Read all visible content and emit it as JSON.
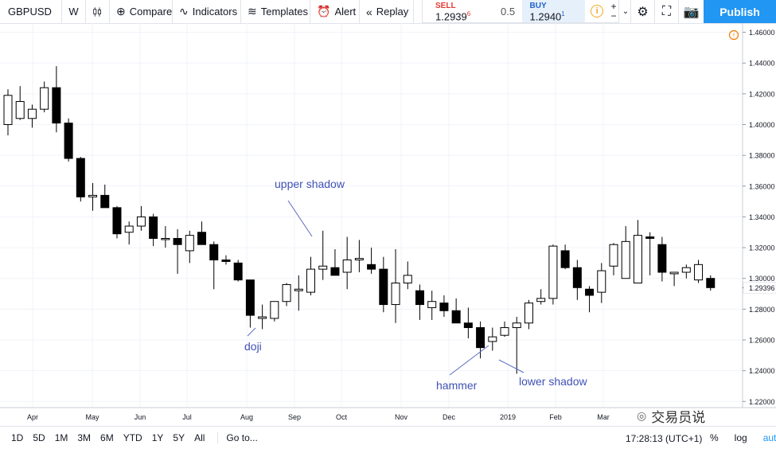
{
  "toolbar": {
    "symbol": "GBPUSD",
    "interval": "W",
    "compare": "Compare",
    "indicators": "Indicators",
    "templates": "Templates",
    "alert": "Alert",
    "replay": "Replay",
    "publish": "Publish",
    "icons": {
      "candles": "candles-icon",
      "compare": "plus-circle-icon",
      "indicators": "indicator-icon",
      "templates": "templates-icon",
      "alert": "alarm-clock-icon",
      "replay": "rewind-icon",
      "settings": "gear-icon",
      "fullscreen": "fullscreen-icon",
      "snapshot": "camera-icon"
    }
  },
  "trade": {
    "sell_label": "SELL",
    "sell_main": "1.2939",
    "sell_sup": "6",
    "spread": "0.5",
    "buy_label": "BUY",
    "buy_main": "1.2940",
    "buy_sup": "1",
    "info_icon": "i",
    "plus": "+",
    "minus": "−"
  },
  "bottom": {
    "ranges": [
      "1D",
      "5D",
      "1M",
      "3M",
      "6M",
      "YTD",
      "1Y",
      "5Y",
      "All"
    ],
    "goto": "Go to...",
    "time": "17:28:13 (UTC+1)",
    "percent": "%",
    "log": "log",
    "auto": "auto"
  },
  "watermark": "交易员说",
  "colors": {
    "accent": "#2196f3",
    "annotation": "#3f51b5",
    "candle": "#000000",
    "price_label_bg": "#ffffff"
  },
  "chart_data": {
    "type": "candlestick",
    "title": "",
    "xlabel": "",
    "ylabel": "",
    "ylim": [
      1.216,
      1.466
    ],
    "y_ticks": [
      "1.46000",
      "1.44000",
      "1.42000",
      "1.40000",
      "1.38000",
      "1.36000",
      "1.34000",
      "1.32000",
      "1.30000",
      "1.28000",
      "1.26000",
      "1.24000",
      "1.22000"
    ],
    "current_price": "1.29396",
    "x_labels": [
      "Apr",
      "May",
      "Jun",
      "Jul",
      "Aug",
      "Sep",
      "Oct",
      "Nov",
      "Dec",
      "2019",
      "Feb",
      "Mar"
    ],
    "grid": true,
    "candles": [
      {
        "o": 1.4,
        "h": 1.423,
        "l": 1.393,
        "c": 1.419
      },
      {
        "o": 1.404,
        "h": 1.425,
        "l": 1.403,
        "c": 1.415
      },
      {
        "o": 1.404,
        "h": 1.413,
        "l": 1.398,
        "c": 1.41
      },
      {
        "o": 1.41,
        "h": 1.428,
        "l": 1.408,
        "c": 1.424
      },
      {
        "o": 1.424,
        "h": 1.438,
        "l": 1.395,
        "c": 1.401
      },
      {
        "o": 1.401,
        "h": 1.404,
        "l": 1.376,
        "c": 1.378
      },
      {
        "o": 1.378,
        "h": 1.379,
        "l": 1.35,
        "c": 1.353
      },
      {
        "o": 1.353,
        "h": 1.362,
        "l": 1.344,
        "c": 1.354
      },
      {
        "o": 1.354,
        "h": 1.361,
        "l": 1.346,
        "c": 1.346
      },
      {
        "o": 1.346,
        "h": 1.347,
        "l": 1.326,
        "c": 1.329
      },
      {
        "o": 1.33,
        "h": 1.337,
        "l": 1.322,
        "c": 1.334
      },
      {
        "o": 1.334,
        "h": 1.347,
        "l": 1.331,
        "c": 1.34
      },
      {
        "o": 1.34,
        "h": 1.342,
        "l": 1.321,
        "c": 1.326
      },
      {
        "o": 1.326,
        "h": 1.334,
        "l": 1.32,
        "c": 1.326
      },
      {
        "o": 1.326,
        "h": 1.332,
        "l": 1.303,
        "c": 1.322
      },
      {
        "o": 1.318,
        "h": 1.331,
        "l": 1.31,
        "c": 1.328
      },
      {
        "o": 1.33,
        "h": 1.337,
        "l": 1.322,
        "c": 1.322
      },
      {
        "o": 1.322,
        "h": 1.324,
        "l": 1.293,
        "c": 1.312
      },
      {
        "o": 1.312,
        "h": 1.315,
        "l": 1.309,
        "c": 1.311
      },
      {
        "o": 1.31,
        "h": 1.312,
        "l": 1.298,
        "c": 1.299
      },
      {
        "o": 1.299,
        "h": 1.299,
        "l": 1.268,
        "c": 1.276
      },
      {
        "o": 1.274,
        "h": 1.283,
        "l": 1.267,
        "c": 1.275
      },
      {
        "o": 1.274,
        "h": 1.285,
        "l": 1.272,
        "c": 1.285
      },
      {
        "o": 1.285,
        "h": 1.297,
        "l": 1.282,
        "c": 1.296
      },
      {
        "o": 1.292,
        "h": 1.302,
        "l": 1.279,
        "c": 1.293
      },
      {
        "o": 1.291,
        "h": 1.314,
        "l": 1.289,
        "c": 1.306
      },
      {
        "o": 1.306,
        "h": 1.331,
        "l": 1.299,
        "c": 1.308
      },
      {
        "o": 1.307,
        "h": 1.319,
        "l": 1.302,
        "c": 1.302
      },
      {
        "o": 1.304,
        "h": 1.327,
        "l": 1.293,
        "c": 1.312
      },
      {
        "o": 1.312,
        "h": 1.325,
        "l": 1.304,
        "c": 1.313
      },
      {
        "o": 1.309,
        "h": 1.32,
        "l": 1.303,
        "c": 1.306
      },
      {
        "o": 1.306,
        "h": 1.314,
        "l": 1.278,
        "c": 1.283
      },
      {
        "o": 1.283,
        "h": 1.319,
        "l": 1.271,
        "c": 1.297
      },
      {
        "o": 1.297,
        "h": 1.311,
        "l": 1.293,
        "c": 1.302
      },
      {
        "o": 1.292,
        "h": 1.296,
        "l": 1.273,
        "c": 1.283
      },
      {
        "o": 1.281,
        "h": 1.292,
        "l": 1.273,
        "c": 1.285
      },
      {
        "o": 1.284,
        "h": 1.289,
        "l": 1.275,
        "c": 1.279
      },
      {
        "o": 1.279,
        "h": 1.287,
        "l": 1.271,
        "c": 1.271
      },
      {
        "o": 1.271,
        "h": 1.281,
        "l": 1.261,
        "c": 1.268
      },
      {
        "o": 1.268,
        "h": 1.272,
        "l": 1.248,
        "c": 1.255
      },
      {
        "o": 1.259,
        "h": 1.268,
        "l": 1.253,
        "c": 1.262
      },
      {
        "o": 1.263,
        "h": 1.272,
        "l": 1.262,
        "c": 1.268
      },
      {
        "o": 1.268,
        "h": 1.275,
        "l": 1.238,
        "c": 1.271
      },
      {
        "o": 1.271,
        "h": 1.286,
        "l": 1.267,
        "c": 1.284
      },
      {
        "o": 1.285,
        "h": 1.293,
        "l": 1.283,
        "c": 1.287
      },
      {
        "o": 1.287,
        "h": 1.322,
        "l": 1.283,
        "c": 1.321
      },
      {
        "o": 1.318,
        "h": 1.322,
        "l": 1.306,
        "c": 1.307
      },
      {
        "o": 1.307,
        "h": 1.312,
        "l": 1.286,
        "c": 1.294
      },
      {
        "o": 1.293,
        "h": 1.295,
        "l": 1.278,
        "c": 1.289
      },
      {
        "o": 1.291,
        "h": 1.31,
        "l": 1.284,
        "c": 1.305
      },
      {
        "o": 1.308,
        "h": 1.323,
        "l": 1.302,
        "c": 1.322
      },
      {
        "o": 1.3,
        "h": 1.334,
        "l": 1.3,
        "c": 1.324
      },
      {
        "o": 1.297,
        "h": 1.338,
        "l": 1.297,
        "c": 1.328
      },
      {
        "o": 1.327,
        "h": 1.33,
        "l": 1.302,
        "c": 1.326
      },
      {
        "o": 1.322,
        "h": 1.327,
        "l": 1.298,
        "c": 1.304
      },
      {
        "o": 1.303,
        "h": 1.304,
        "l": 1.295,
        "c": 1.304
      },
      {
        "o": 1.304,
        "h": 1.309,
        "l": 1.3,
        "c": 1.307
      },
      {
        "o": 1.299,
        "h": 1.312,
        "l": 1.297,
        "c": 1.309
      },
      {
        "o": 1.3,
        "h": 1.302,
        "l": 1.292,
        "c": 1.294
      }
    ],
    "annotations": [
      "upper shadow",
      "doji",
      "hammer",
      "lower shadow"
    ]
  }
}
